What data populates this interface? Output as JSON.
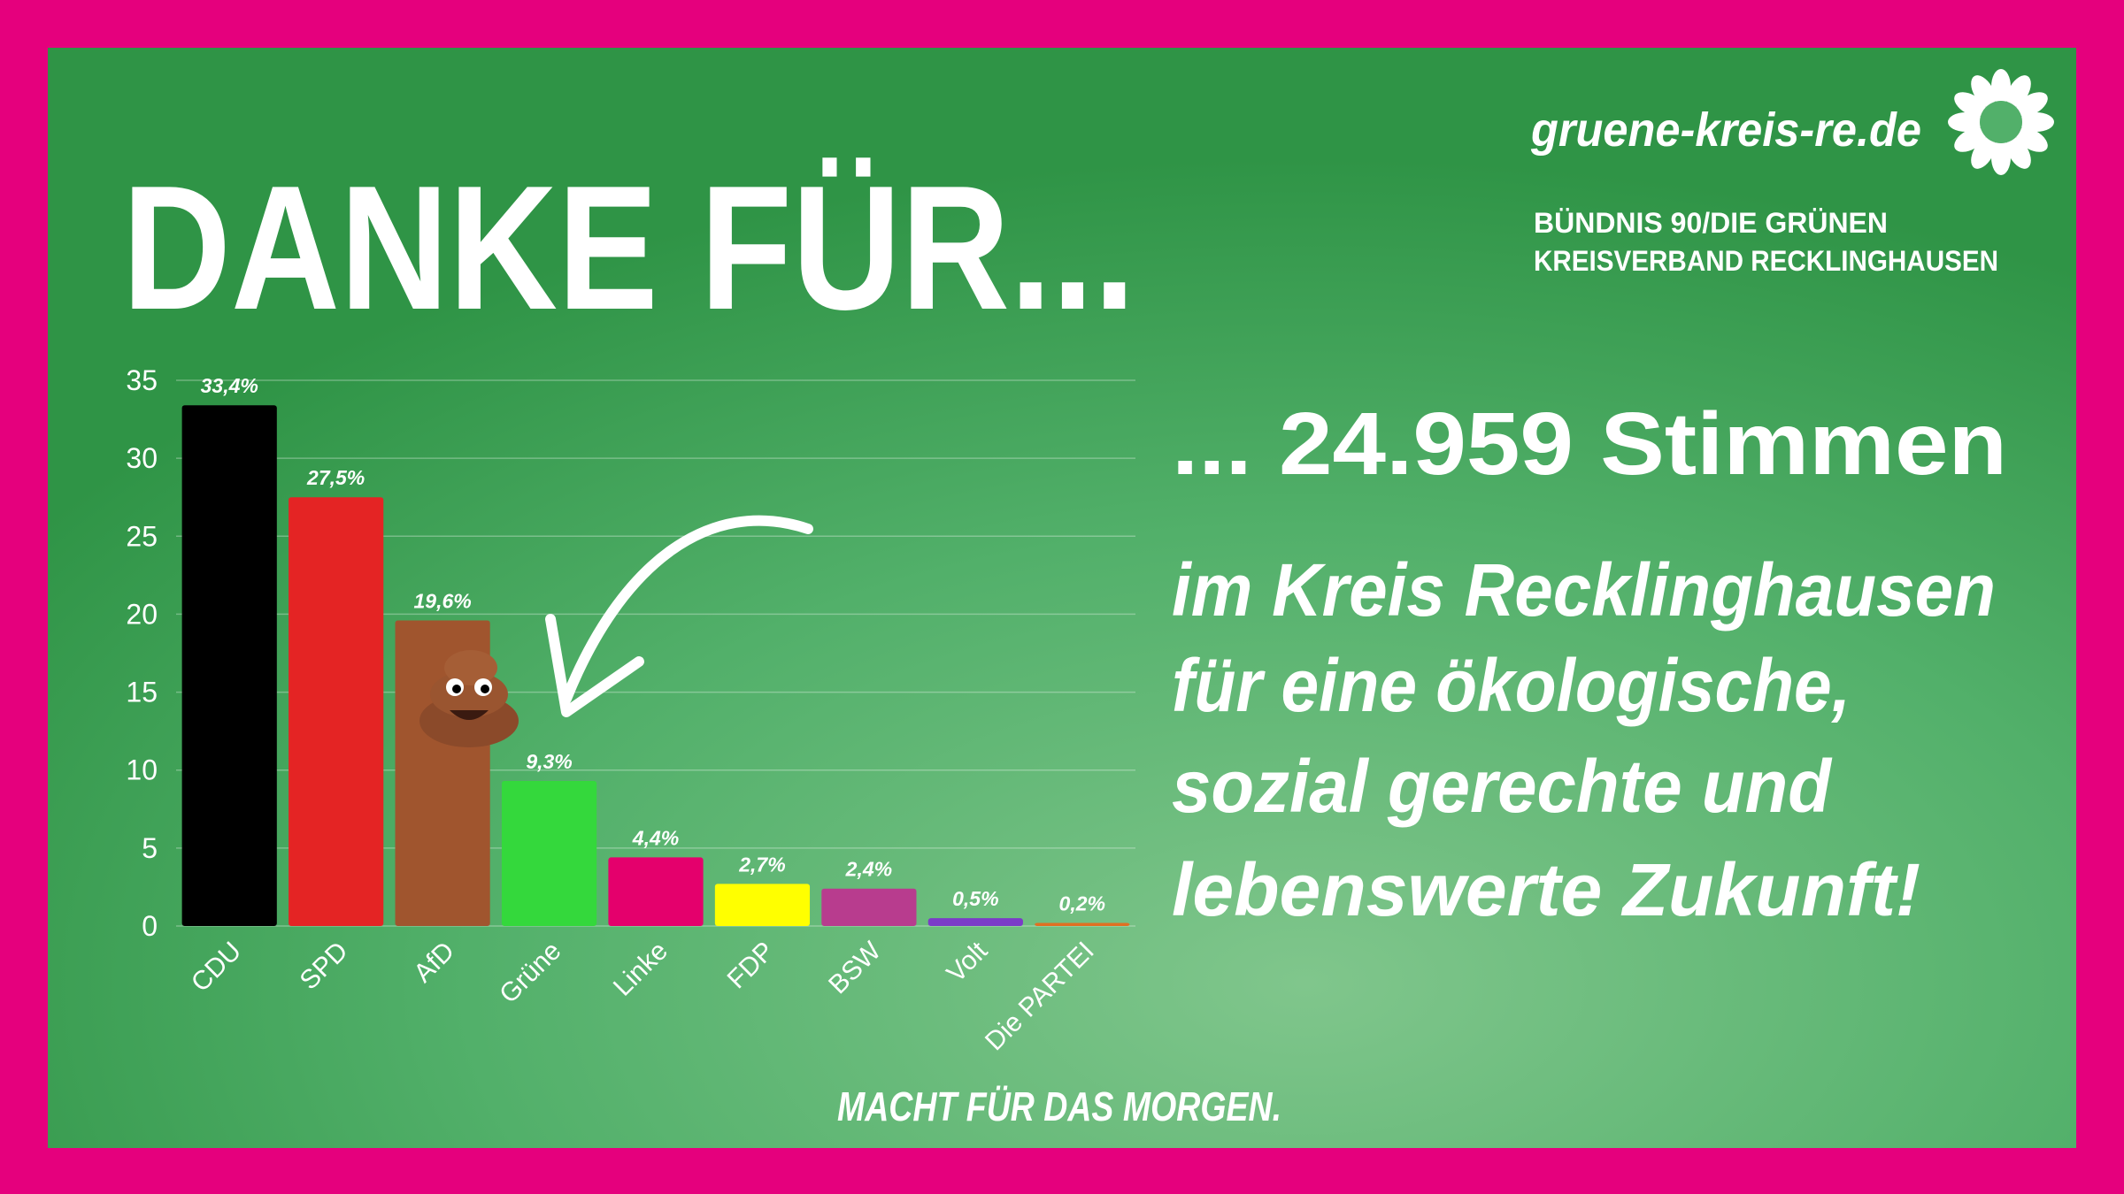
{
  "header": {
    "headline": "DANKE FÜR...",
    "url": "gruene-kreis-re.de",
    "org_line1": "BÜNDNIS 90/DIE GRÜNEN",
    "org_line2": "KREISVERBAND RECKLINGHAUSEN"
  },
  "message": {
    "votes": "... 24.959 Stimmen",
    "lines": [
      "im Kreis Recklinghausen",
      "für eine ökologische,",
      "sozial gerechte und",
      "lebenswerte Zukunft!"
    ]
  },
  "footer": {
    "slogan": "MACHT FÜR DAS MORGEN."
  },
  "chart_data": {
    "type": "bar",
    "categories": [
      "CDU",
      "SPD",
      "AfD",
      "Grüne",
      "Linke",
      "FDP",
      "BSW",
      "Volt",
      "Die PARTEI"
    ],
    "values": [
      33.4,
      27.5,
      19.6,
      9.3,
      4.4,
      2.7,
      2.4,
      0.5,
      0.2
    ],
    "value_labels": [
      "33,4%",
      "27,5%",
      "19,6%",
      "9,3%",
      "4,4%",
      "2,7%",
      "2,4%",
      "0,5%",
      "0,2%"
    ],
    "colors": [
      "#000000",
      "#e42424",
      "#a0552e",
      "#34d83c",
      "#e4006c",
      "#ffff00",
      "#b83c8e",
      "#7b3cc8",
      "#e07022"
    ],
    "ylim": [
      0,
      35
    ],
    "yticks": [
      0,
      5,
      10,
      15,
      20,
      25,
      30,
      35
    ],
    "grid": true
  }
}
